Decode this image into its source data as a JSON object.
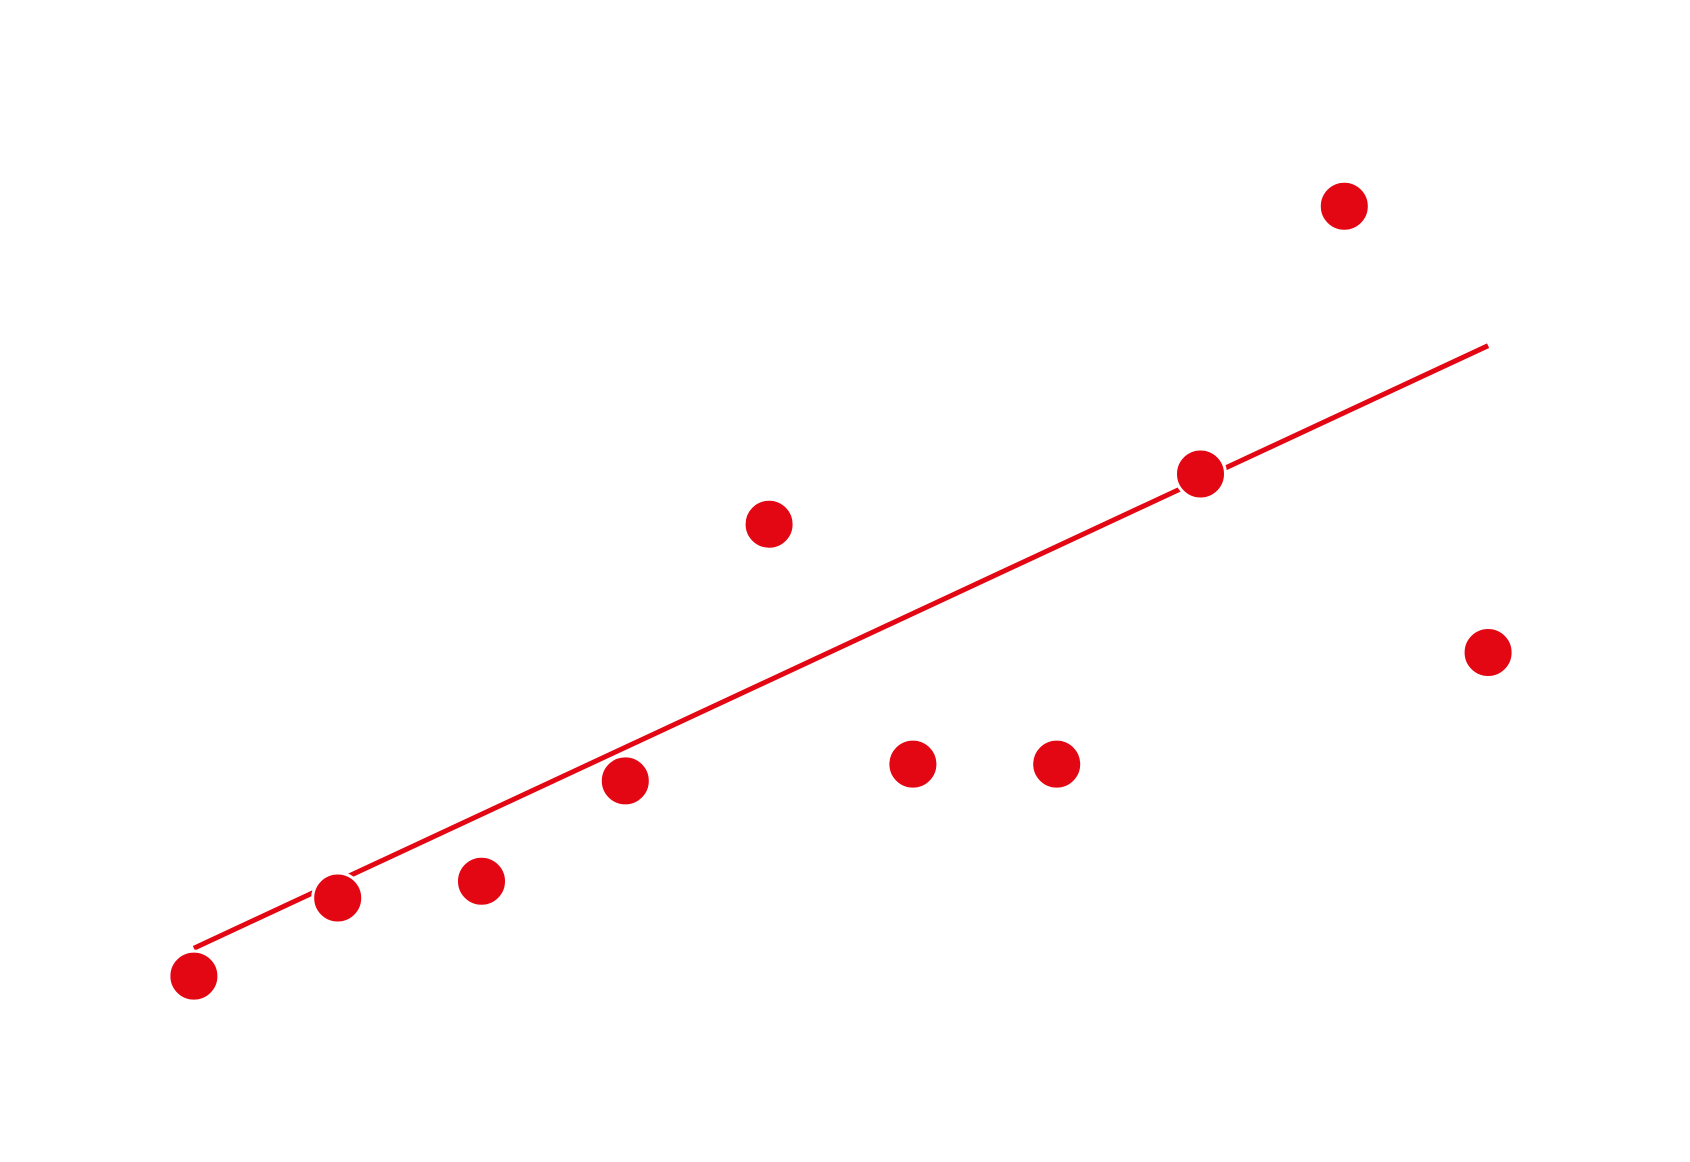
{
  "chart_data": {
    "type": "scatter",
    "title": "",
    "xlabel": "",
    "ylabel": "",
    "grid": false,
    "axes_visible": false,
    "color": "#e30613",
    "xlim": [
      0.5,
      10.5
    ],
    "ylim": [
      -0.2,
      9.3
    ],
    "series": [
      {
        "kind": "points",
        "x": [
          1,
          2,
          3,
          4,
          5,
          6,
          7,
          8,
          9,
          10
        ],
        "y": [
          1,
          1.7,
          1.85,
          2.75,
          5.05,
          2.9,
          2.9,
          5.5,
          7.9,
          3.9
        ]
      },
      {
        "kind": "trendline",
        "x": [
          1,
          10
        ],
        "y": [
          1.25,
          6.65
        ]
      }
    ]
  }
}
